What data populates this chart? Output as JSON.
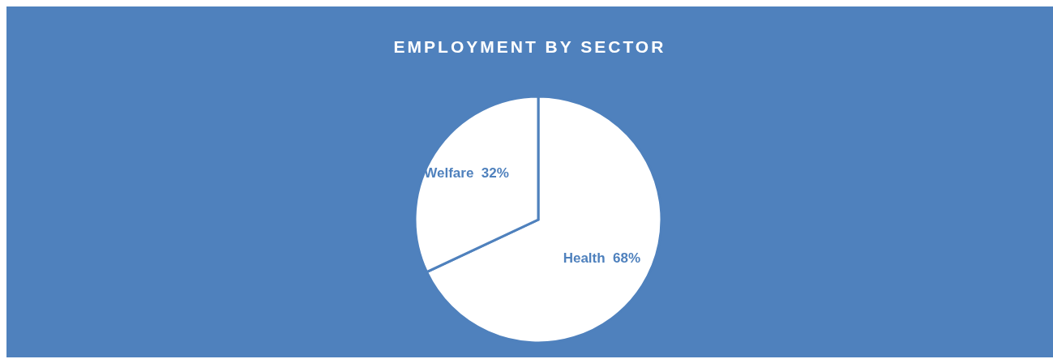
{
  "chart_data": {
    "type": "pie",
    "title": "EMPLOYMENT BY SECTOR",
    "categories": [
      "Health",
      "Welfare"
    ],
    "values": [
      68,
      32
    ],
    "value_labels": [
      "68%",
      "32%"
    ],
    "colors": [
      "#ffffff",
      "#ffffff"
    ],
    "legend": false
  }
}
